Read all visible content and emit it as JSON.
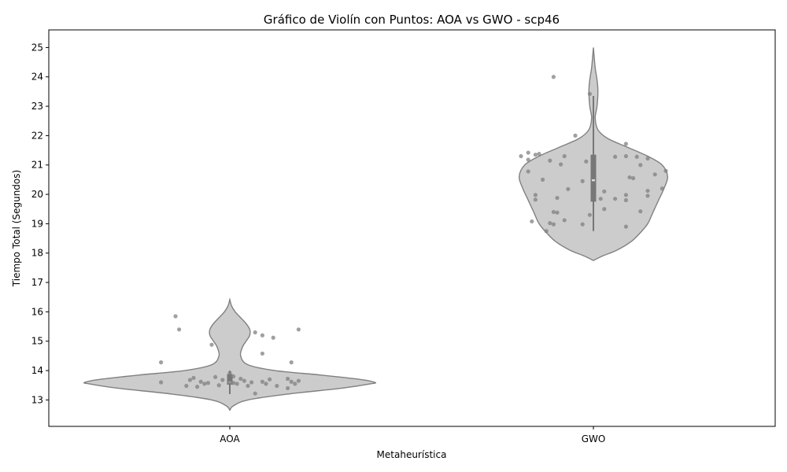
{
  "chart_data": {
    "type": "violin",
    "title": "Gráfico de Violín con Puntos: AOA vs GWO - scp46",
    "xlabel": "Metaheurística",
    "ylabel": "Tiempo Total (Segundos)",
    "categories": [
      "AOA",
      "GWO"
    ],
    "ylim": [
      12.1,
      25.6
    ],
    "yticks": [
      13,
      14,
      15,
      16,
      17,
      18,
      19,
      20,
      21,
      22,
      23,
      24,
      25
    ],
    "grid": false,
    "colors": {
      "violin_fill": "#cccccc",
      "violin_edge": "#808080",
      "box": "#777777",
      "median": "#dcdcdc",
      "points": "#808080"
    },
    "series": [
      {
        "category": "AOA",
        "box": {
          "whisker_low": 13.2,
          "q1": 13.52,
          "median": 13.6,
          "q3": 13.88,
          "whisker_high": 14.0
        },
        "density": [
          [
            12.65,
            0.0
          ],
          [
            12.8,
            0.02
          ],
          [
            13.0,
            0.1
          ],
          [
            13.2,
            0.32
          ],
          [
            13.4,
            0.62
          ],
          [
            13.55,
            0.78
          ],
          [
            13.6,
            0.8
          ],
          [
            13.7,
            0.72
          ],
          [
            13.85,
            0.5
          ],
          [
            14.0,
            0.25
          ],
          [
            14.2,
            0.1
          ],
          [
            14.5,
            0.06
          ],
          [
            14.8,
            0.07
          ],
          [
            15.0,
            0.09
          ],
          [
            15.2,
            0.11
          ],
          [
            15.4,
            0.11
          ],
          [
            15.6,
            0.09
          ],
          [
            15.8,
            0.06
          ],
          [
            16.0,
            0.03
          ],
          [
            16.2,
            0.01
          ],
          [
            16.42,
            0.0
          ]
        ],
        "points": [
          [
            -0.15,
            15.85
          ],
          [
            -0.14,
            15.4
          ],
          [
            -0.05,
            14.88
          ],
          [
            0.07,
            15.3
          ],
          [
            0.09,
            15.2
          ],
          [
            0.12,
            15.12
          ],
          [
            0.19,
            15.4
          ],
          [
            -0.19,
            14.28
          ],
          [
            0.09,
            14.58
          ],
          [
            0.17,
            14.28
          ],
          [
            -0.19,
            13.6
          ],
          [
            -0.11,
            13.68
          ],
          [
            -0.1,
            13.75
          ],
          [
            -0.08,
            13.62
          ],
          [
            -0.07,
            13.55
          ],
          [
            -0.04,
            13.78
          ],
          [
            -0.02,
            13.68
          ],
          [
            0.0,
            13.92
          ],
          [
            0.01,
            13.8
          ],
          [
            0.02,
            13.55
          ],
          [
            0.04,
            13.65
          ],
          [
            0.06,
            13.6
          ],
          [
            0.09,
            13.62
          ],
          [
            0.11,
            13.7
          ],
          [
            0.16,
            13.72
          ],
          [
            0.17,
            13.62
          ],
          [
            0.19,
            13.65
          ],
          [
            -0.12,
            13.48
          ],
          [
            -0.09,
            13.45
          ],
          [
            -0.03,
            13.5
          ],
          [
            0.01,
            13.58
          ],
          [
            0.05,
            13.48
          ],
          [
            0.07,
            13.22
          ],
          [
            0.1,
            13.55
          ],
          [
            0.13,
            13.48
          ],
          [
            0.16,
            13.4
          ],
          [
            0.18,
            13.55
          ],
          [
            -0.06,
            13.58
          ],
          [
            0.03,
            13.72
          ],
          [
            0.0,
            13.6
          ]
        ]
      },
      {
        "category": "GWO",
        "box": {
          "whisker_low": 18.75,
          "q1": 19.75,
          "median": 20.48,
          "q3": 21.35,
          "whisker_high": 23.35
        },
        "density": [
          [
            17.75,
            0.0
          ],
          [
            17.9,
            0.05
          ],
          [
            18.1,
            0.13
          ],
          [
            18.4,
            0.21
          ],
          [
            18.7,
            0.26
          ],
          [
            19.0,
            0.3
          ],
          [
            19.4,
            0.33
          ],
          [
            19.8,
            0.36
          ],
          [
            20.2,
            0.39
          ],
          [
            20.6,
            0.41
          ],
          [
            21.0,
            0.38
          ],
          [
            21.3,
            0.3
          ],
          [
            21.6,
            0.19
          ],
          [
            21.9,
            0.08
          ],
          [
            22.2,
            0.025
          ],
          [
            22.6,
            0.01
          ],
          [
            23.0,
            0.02
          ],
          [
            23.5,
            0.025
          ],
          [
            23.9,
            0.02
          ],
          [
            24.3,
            0.01
          ],
          [
            24.7,
            0.004
          ],
          [
            25.0,
            0.0
          ]
        ],
        "points": [
          [
            -0.11,
            24.0
          ],
          [
            -0.01,
            23.42
          ],
          [
            -0.05,
            22.0
          ],
          [
            0.09,
            21.72
          ],
          [
            -0.2,
            21.3
          ],
          [
            -0.18,
            21.42
          ],
          [
            -0.16,
            21.35
          ],
          [
            -0.15,
            21.38
          ],
          [
            -0.08,
            21.3
          ],
          [
            0.06,
            21.28
          ],
          [
            0.09,
            21.3
          ],
          [
            0.12,
            21.28
          ],
          [
            0.15,
            21.22
          ],
          [
            -0.18,
            21.18
          ],
          [
            -0.12,
            21.15
          ],
          [
            -0.09,
            21.02
          ],
          [
            -0.02,
            21.12
          ],
          [
            0.13,
            21.0
          ],
          [
            0.2,
            20.8
          ],
          [
            -0.18,
            20.78
          ],
          [
            0.17,
            20.68
          ],
          [
            -0.14,
            20.5
          ],
          [
            0.1,
            20.58
          ],
          [
            0.11,
            20.55
          ],
          [
            -0.03,
            20.45
          ],
          [
            -0.07,
            20.18
          ],
          [
            0.03,
            20.1
          ],
          [
            0.19,
            20.2
          ],
          [
            -0.16,
            19.98
          ],
          [
            0.09,
            19.98
          ],
          [
            0.15,
            20.12
          ],
          [
            -0.16,
            19.82
          ],
          [
            -0.1,
            19.88
          ],
          [
            0.02,
            19.85
          ],
          [
            0.06,
            19.85
          ],
          [
            0.09,
            19.8
          ],
          [
            0.15,
            19.95
          ],
          [
            0.03,
            19.5
          ],
          [
            -0.11,
            19.4
          ],
          [
            -0.1,
            19.38
          ],
          [
            0.13,
            19.42
          ],
          [
            -0.08,
            19.12
          ],
          [
            -0.17,
            19.08
          ],
          [
            -0.12,
            19.02
          ],
          [
            -0.11,
            18.98
          ],
          [
            -0.03,
            18.98
          ],
          [
            -0.01,
            19.3
          ],
          [
            0.09,
            18.9
          ],
          [
            -0.13,
            18.75
          ]
        ]
      }
    ]
  }
}
